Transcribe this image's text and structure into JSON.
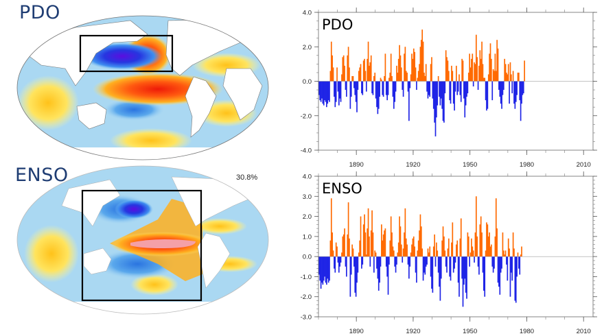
{
  "maps": [
    {
      "label": "PDO",
      "box_region": "North Pacific"
    },
    {
      "label": "ENSO",
      "variance_text": "30.8%",
      "box_region": "Tropical Pacific"
    }
  ],
  "colors": {
    "positive": "#ff6a00",
    "negative": "#1f24e6",
    "land": "#ffffff",
    "ocean_light": "#aad8f2"
  },
  "chart_data": [
    {
      "type": "bar",
      "title": "PDO",
      "xlabel": "",
      "ylabel": "",
      "xlim": [
        1870,
        2015
      ],
      "ylim": [
        -4.0,
        4.0
      ],
      "yticks": [
        "4.0",
        "2.0",
        "0.0",
        "-2.0",
        "-4.0"
      ],
      "ytick_values": [
        4,
        2,
        0,
        -2,
        -4
      ],
      "xticks": [
        "1890",
        "1920",
        "1950",
        "1980",
        "2010"
      ],
      "xtick_values": [
        1890,
        1920,
        1950,
        1980,
        2010
      ],
      "x_start": 1870,
      "x_step": 0.5,
      "values": [
        -0.8,
        -1.1,
        -1.2,
        -1.0,
        -1.3,
        -1.4,
        -1.1,
        -1.2,
        -1.5,
        -1.3,
        -1.1,
        -1.2,
        0.6,
        2.3,
        1.5,
        0.8,
        -0.9,
        -1.5,
        -1.2,
        0.8,
        -0.6,
        -1.4,
        -1.0,
        -1.2,
        0.4,
        1.4,
        1.5,
        0.9,
        -0.5,
        -0.9,
        1.5,
        2.0,
        0.8,
        -1.6,
        -0.9,
        0.3,
        0.3,
        -0.4,
        -0.8,
        -1.2,
        -1.8,
        -0.5,
        0.6,
        0.8,
        1.0,
        -0.7,
        -0.8,
        1.2,
        1.3,
        0.6,
        -0.6,
        1.3,
        2.3,
        0.9,
        1.1,
        1.5,
        -0.7,
        -0.8,
        0.3,
        0.5,
        -1.0,
        -1.5,
        -1.9,
        -1.6,
        -0.9,
        0.2,
        0.1,
        -0.8,
        -0.9,
        0.3,
        1.6,
        -0.8,
        -1.1,
        -0.8,
        0.2,
        0.5,
        1.6,
        0.3,
        -0.9,
        -1.6,
        -1.2,
        -0.6,
        0.9,
        0.5,
        1.3,
        2.1,
        1.5,
        0.8,
        -0.5,
        -0.9,
        1.6,
        2.0,
        0.6,
        0.5,
        -0.6,
        -2.3,
        -0.4,
        0.4,
        1.6,
        1.3,
        1.9,
        1.7,
        0.8,
        -0.5,
        0.2,
        0.6,
        1.0,
        2.0,
        2.4,
        3.0,
        2.3,
        0.5,
        0.3,
        1.0,
        -0.6,
        -1.0,
        -0.8,
        -0.9,
        1.0,
        1.4,
        -1.0,
        -1.6,
        -2.4,
        -3.2,
        -2.1,
        -1.4,
        0.3,
        -0.9,
        -1.4,
        -1.0,
        -1.6,
        -2.3,
        -2.4,
        -0.7,
        1.8,
        1.4,
        1.2,
        0.6,
        -1.1,
        -1.3,
        0.9,
        0.6,
        -1.3,
        -1.7,
        -0.6,
        0.9,
        -0.8,
        -0.6,
        0.4,
        -0.8,
        -1.2,
        1.3,
        1.2,
        -1.0,
        -2.1,
        -1.4,
        -0.9,
        -0.7,
        0.5,
        1.6,
        0.8,
        1.3,
        1.6,
        -0.3,
        1.1,
        1.0,
        2.7,
        1.4,
        -0.5,
        0.9,
        1.8,
        1.3,
        2.3,
        1.0,
        0.2,
        0.2,
        -1.1,
        -1.7,
        -1.6,
        0.4,
        1.6,
        2.2,
        1.3,
        -1.1,
        0.7,
        0.6,
        1.6,
        0.6,
        2.4,
        1.9,
        -0.5,
        -0.9,
        -1.3,
        -1.6,
        -0.8,
        -0.5,
        1.3,
        1.0,
        0.5,
        0.4,
        1.0,
        -1.3,
        1.1,
        0.4,
        -0.7,
        0.6,
        -1.3,
        -1.6,
        -1.2,
        -0.8,
        0.5,
        0.5,
        -1.1,
        -2.3,
        -1.3,
        -0.8,
        -0.7,
        1.2
      ]
    },
    {
      "type": "bar",
      "title": "ENSO",
      "xlabel": "",
      "ylabel": "",
      "xlim": [
        1870,
        2015
      ],
      "ylim": [
        -3.0,
        4.0
      ],
      "yticks": [
        "4.0",
        "3.0",
        "2.0",
        "1.0",
        "0.0",
        "-1.0",
        "-2.0",
        "-3.0"
      ],
      "ytick_values": [
        4,
        3,
        2,
        1,
        0,
        -1,
        -2,
        -3
      ],
      "xticks": [
        "1890",
        "1920",
        "1950",
        "1980",
        "2010"
      ],
      "xtick_values": [
        1890,
        1920,
        1950,
        1980,
        2010
      ],
      "x_start": 1870,
      "x_step": 0.5,
      "values": [
        -0.9,
        -1.2,
        -1.6,
        -1.3,
        -1.4,
        -1.2,
        -1.0,
        -1.3,
        -1.4,
        -1.1,
        -1.3,
        -1.2,
        0.8,
        2.9,
        1.2,
        0.3,
        -0.6,
        -0.8,
        0.7,
        0.5,
        -0.3,
        -0.8,
        -0.5,
        -0.3,
        0.2,
        1.0,
        1.1,
        1.4,
        -0.5,
        -1.0,
        1.1,
        2.7,
        0.9,
        -2.0,
        -0.9,
        0.6,
        0.4,
        -0.5,
        -1.8,
        -2.0,
        -1.3,
        -0.8,
        0.2,
        0.8,
        2.0,
        -0.6,
        -0.4,
        1.6,
        2.1,
        1.2,
        0.1,
        1.4,
        2.4,
        1.0,
        -0.5,
        1.3,
        2.3,
        1.2,
        -0.8,
        0.3,
        0.2,
        -0.6,
        -1.1,
        -1.7,
        -1.3,
        -0.5,
        1.6,
        0.8,
        1.1,
        1.3,
        1.4,
        -0.5,
        -1.0,
        -1.9,
        -0.4,
        0.8,
        2.0,
        1.2,
        0.5,
        0.3,
        -0.5,
        -0.8,
        -0.4,
        0.2,
        0.7,
        2.0,
        1.5,
        0.6,
        -0.3,
        0.4,
        1.2,
        2.4,
        0.9,
        0.6,
        -0.4,
        -1.1,
        -0.5,
        0.2,
        0.6,
        0.9,
        1.0,
        0.5,
        -0.8,
        -1.3,
        0.3,
        0.8,
        1.3,
        2.1,
        1.5,
        0.4,
        -1.2,
        -0.8,
        -0.9,
        -0.5,
        -0.4,
        0.4,
        0.2,
        0.5,
        -1.0,
        -1.6,
        -1.8,
        0.5,
        1.1,
        -0.5,
        0.7,
        0.3,
        -0.8,
        -1.5,
        -2.2,
        -1.1,
        0.8,
        1.5,
        1.0,
        0.3,
        -0.5,
        -0.8,
        0.4,
        0.9,
        -1.0,
        -1.2,
        0.7,
        1.7,
        -0.8,
        -0.6,
        -0.3,
        0.6,
        0.8,
        -1.3,
        -2.0,
        0.9,
        1.9,
        -1.1,
        -2.5,
        -1.4,
        -1.1,
        -1.8,
        -2.1,
        1.2,
        1.0,
        -0.5,
        0.2,
        0.9,
        0.5,
        0.3,
        -0.3,
        1.2,
        3.0,
        1.0,
        -0.5,
        -0.9,
        1.6,
        2.0,
        1.2,
        -0.8,
        -1.7,
        -2.0,
        0.3,
        1.7,
        1.6,
        1.0,
        1.2,
        0.5,
        0.6,
        -0.5,
        -0.8,
        -0.6,
        1.0,
        2.9,
        1.4,
        -1.3,
        -1.5,
        -1.9,
        -0.8,
        -0.6,
        1.2,
        0.3,
        0.1,
        0.3,
        -0.4,
        -1.2,
        0.9,
        0.4,
        -2.0,
        -0.8,
        -1.2,
        1.2,
        0.4,
        -2.2,
        -2.3,
        -1.0,
        0.2,
        -0.6,
        -0.9,
        0.1,
        0.5
      ]
    }
  ]
}
